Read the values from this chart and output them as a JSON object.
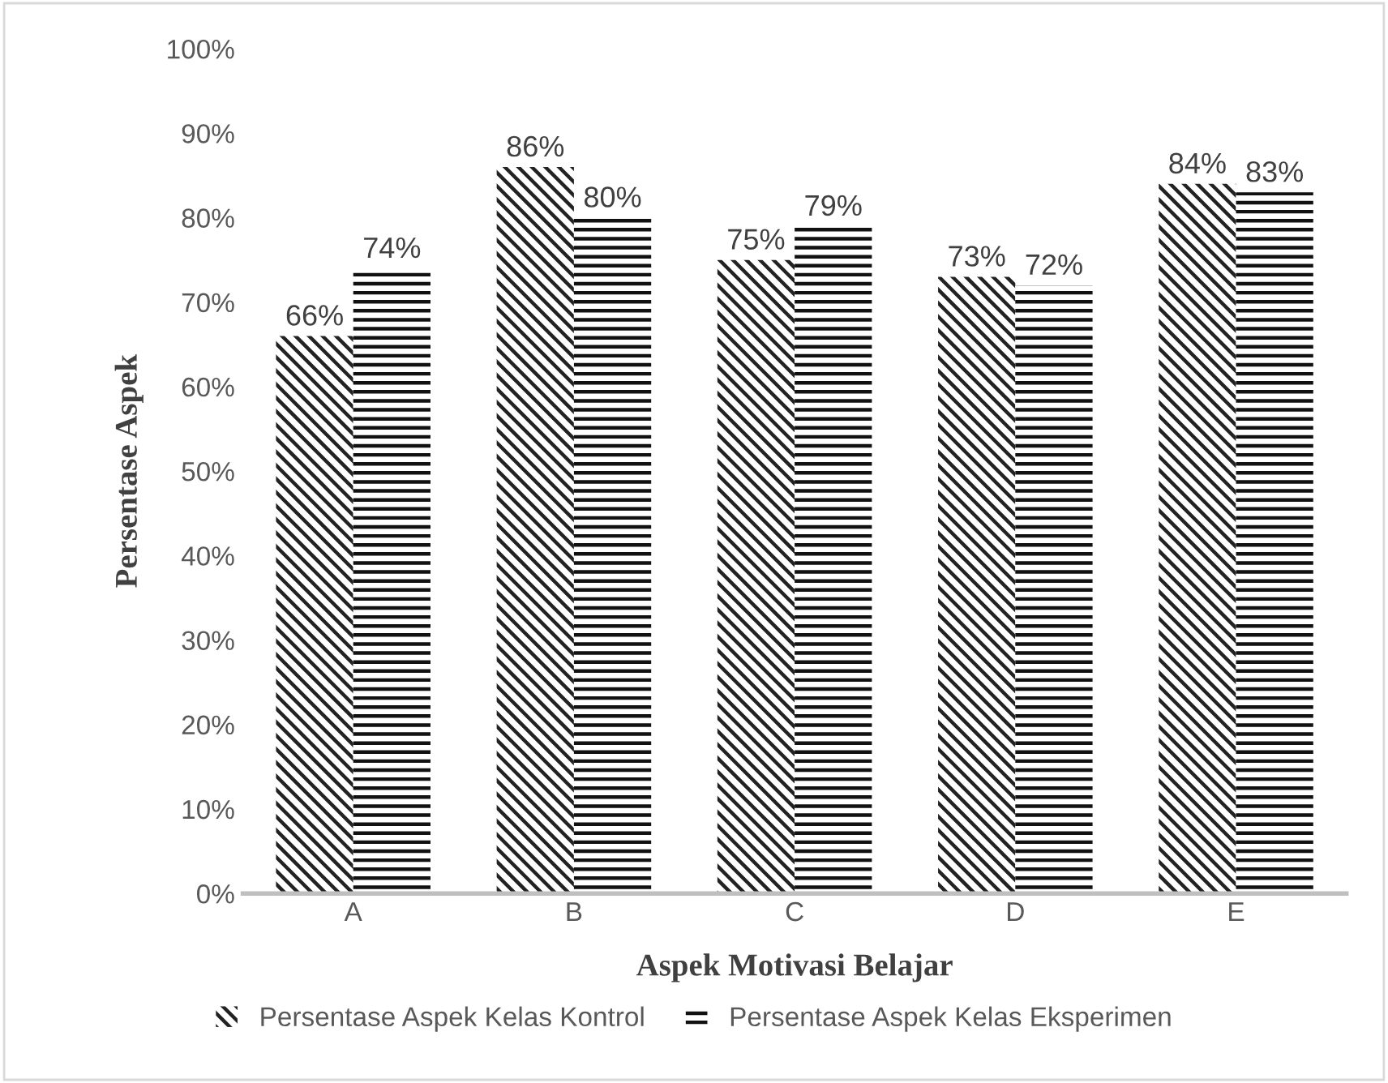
{
  "chart_data": {
    "type": "bar",
    "xlabel": "Aspek Motivasi Belajar",
    "ylabel": "Persentase Aspek",
    "categories": [
      "A",
      "B",
      "C",
      "D",
      "E"
    ],
    "series": [
      {
        "name": "Persentase Aspek Kelas Kontrol",
        "color": "#222222",
        "values": [
          66,
          86,
          75,
          73,
          84
        ],
        "value_labels": [
          "66%",
          "86%",
          "75%",
          "73%",
          "84%"
        ]
      },
      {
        "name": "Persentase Aspek Kelas Eksperimen",
        "color": "#111111",
        "values": [
          74,
          80,
          79,
          72,
          83
        ],
        "value_labels": [
          "74%",
          "80%",
          "79%",
          "72%",
          "83%"
        ]
      }
    ],
    "ylim": [
      0,
      100
    ],
    "yticks": [
      {
        "value": 0,
        "label": "0%"
      },
      {
        "value": 10,
        "label": "10%"
      },
      {
        "value": 20,
        "label": "20%"
      },
      {
        "value": 30,
        "label": "30%"
      },
      {
        "value": 40,
        "label": "40%"
      },
      {
        "value": 50,
        "label": "50%"
      },
      {
        "value": 60,
        "label": "60%"
      },
      {
        "value": 70,
        "label": "70%"
      },
      {
        "value": 80,
        "label": "80%"
      },
      {
        "value": 90,
        "label": "90%"
      },
      {
        "value": 100,
        "label": "100%"
      }
    ],
    "legend": "bottom"
  }
}
